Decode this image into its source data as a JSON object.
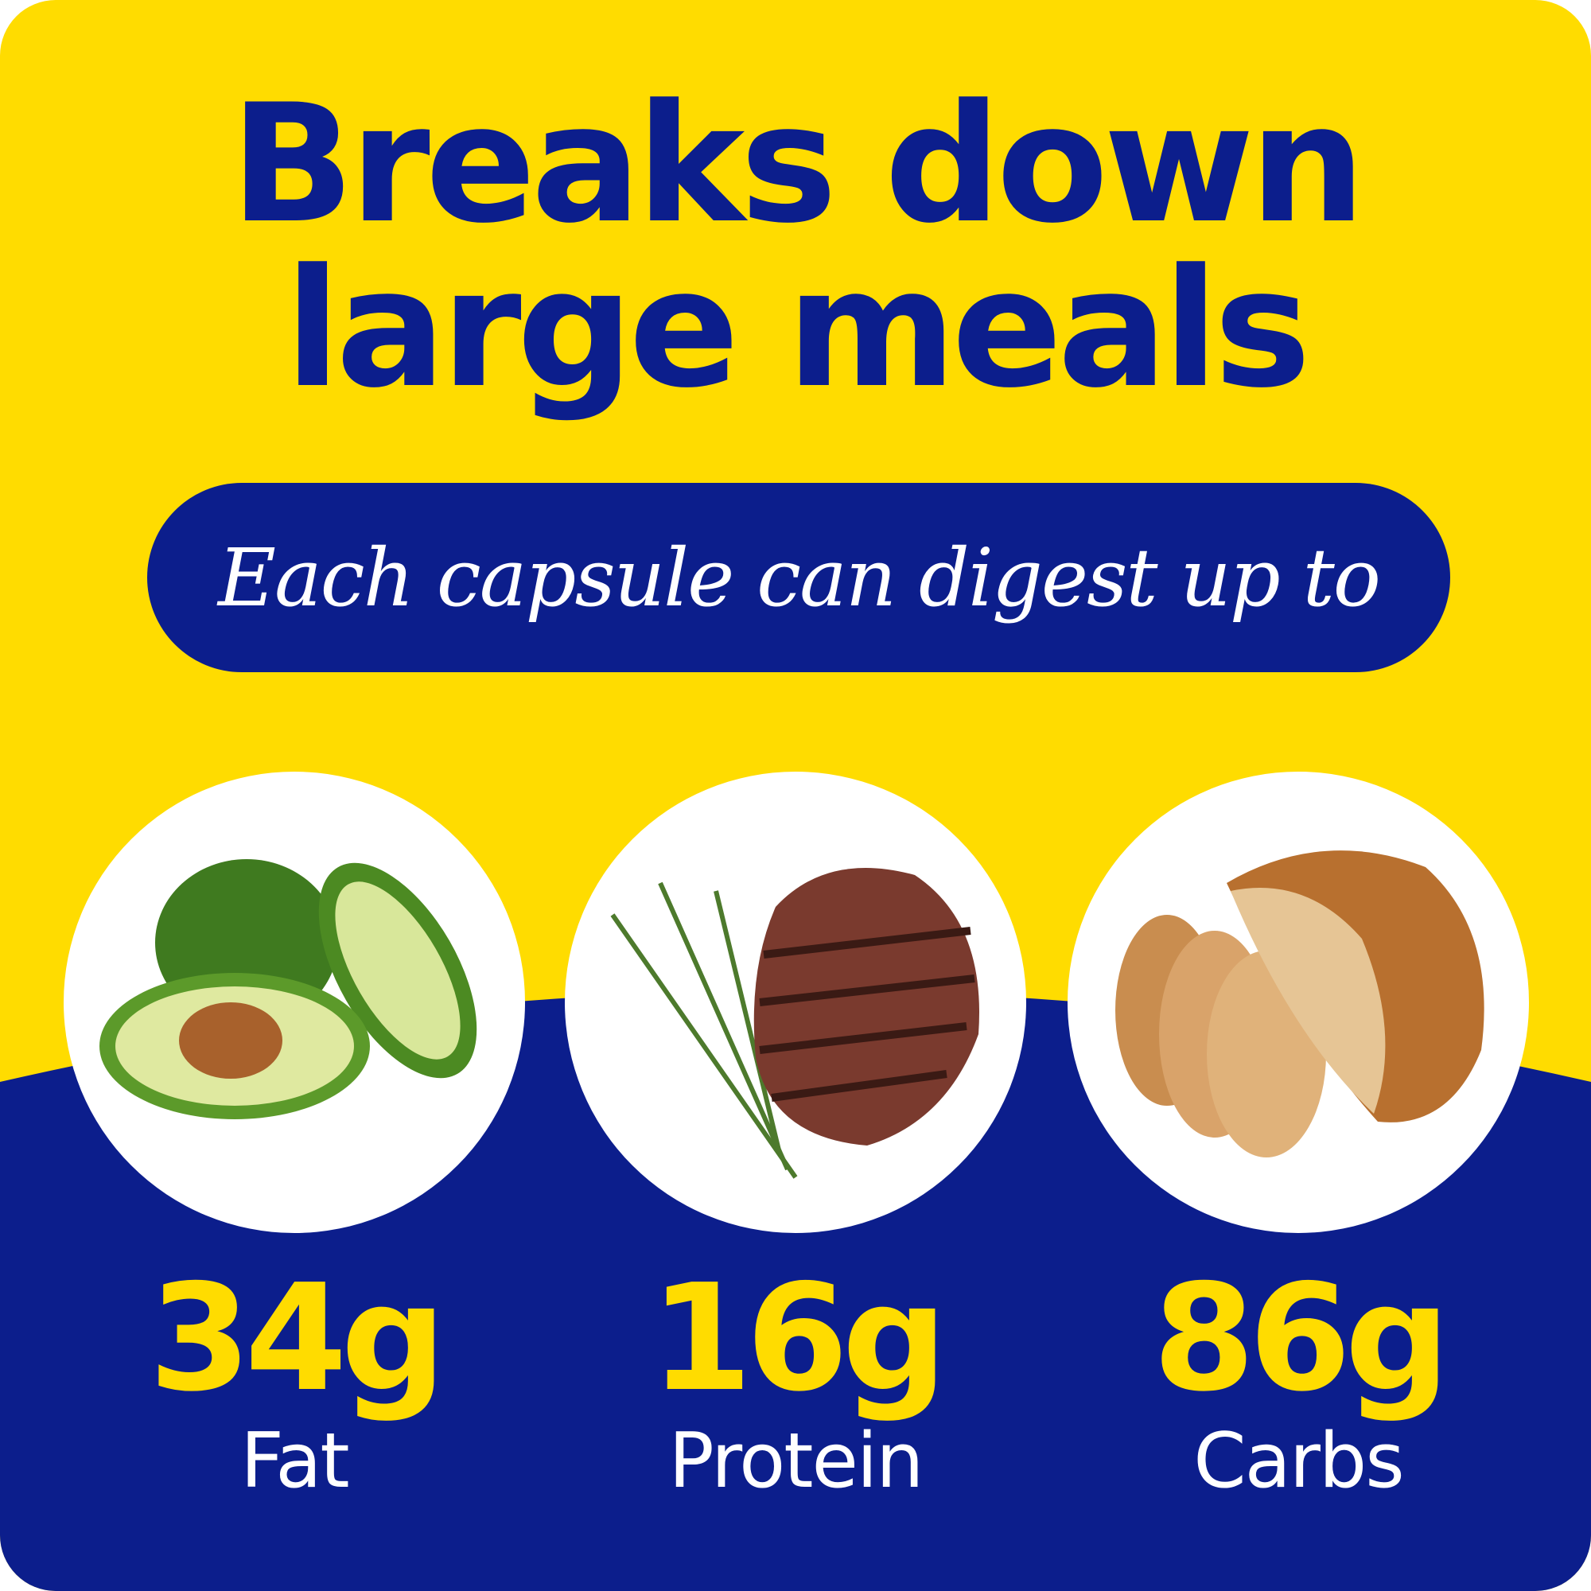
{
  "headline": {
    "line1": "Breaks down",
    "line2": "large meals"
  },
  "banner": "Each capsule can digest up to",
  "nutrients": [
    {
      "amount": "34g",
      "label": "Fat",
      "image": "avocado"
    },
    {
      "amount": "16g",
      "label": "Protein",
      "image": "steak-with-rosemary"
    },
    {
      "amount": "86g",
      "label": "Carbs",
      "image": "bread-loaf"
    }
  ],
  "colors": {
    "yellow": "#FFDC00",
    "blue": "#0C1E8C",
    "white": "#FFFFFF"
  }
}
